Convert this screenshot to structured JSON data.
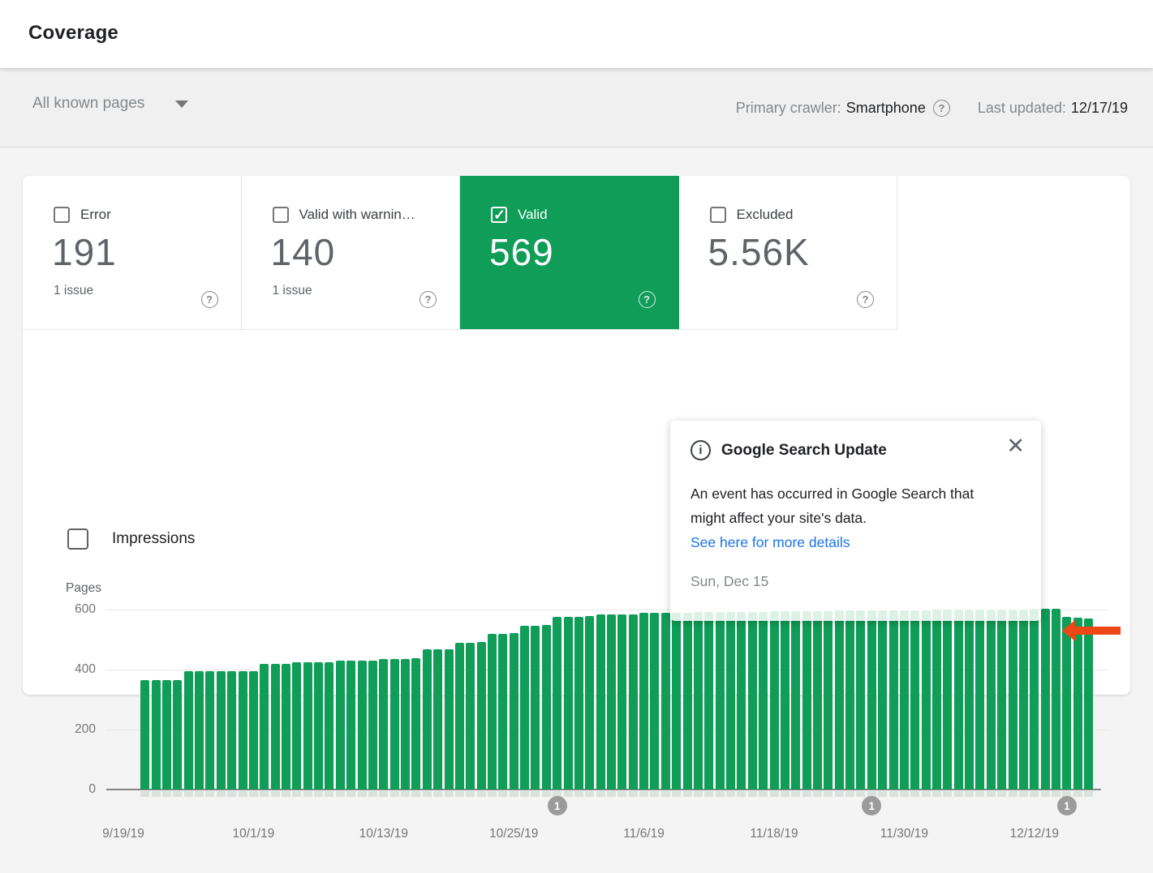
{
  "header": {
    "title": "Coverage"
  },
  "filter_bar": {
    "scope_label": "All known pages",
    "primary_crawler_label": "Primary crawler:",
    "primary_crawler_value": "Smartphone",
    "help_glyph": "?",
    "last_updated_label": "Last updated:",
    "last_updated_value": "12/17/19"
  },
  "status_cards": [
    {
      "label": "Error",
      "value": "191",
      "sub": "1 issue",
      "checked": false,
      "selected": false
    },
    {
      "label": "Valid with warnin…",
      "value": "140",
      "sub": "1 issue",
      "checked": false,
      "selected": false
    },
    {
      "label": "Valid",
      "value": "569",
      "sub": "",
      "checked": true,
      "selected": true
    },
    {
      "label": "Excluded",
      "value": "5.56K",
      "sub": "",
      "checked": false,
      "selected": false
    }
  ],
  "impressions_toggle": {
    "label": "Impressions",
    "checked": false
  },
  "chart_data": {
    "type": "bar",
    "title": "",
    "ylabel": "Pages",
    "ylim": [
      0,
      600
    ],
    "yticks": [
      0,
      200,
      400,
      600
    ],
    "grid": "horizontal",
    "bar_color": "#0f9d58",
    "xticks": [
      "9/19/19",
      "10/1/19",
      "10/13/19",
      "10/25/19",
      "11/6/19",
      "11/18/19",
      "11/30/19",
      "12/12/19"
    ],
    "x": [
      "9/21/19",
      "9/22/19",
      "9/23/19",
      "9/24/19",
      "9/25/19",
      "9/26/19",
      "9/27/19",
      "9/28/19",
      "9/29/19",
      "9/30/19",
      "10/1/19",
      "10/2/19",
      "10/3/19",
      "10/4/19",
      "10/5/19",
      "10/6/19",
      "10/7/19",
      "10/8/19",
      "10/9/19",
      "10/10/19",
      "10/11/19",
      "10/12/19",
      "10/13/19",
      "10/14/19",
      "10/15/19",
      "10/16/19",
      "10/17/19",
      "10/18/19",
      "10/19/19",
      "10/20/19",
      "10/21/19",
      "10/22/19",
      "10/23/19",
      "10/24/19",
      "10/25/19",
      "10/26/19",
      "10/27/19",
      "10/28/19",
      "10/29/19",
      "10/30/19",
      "10/31/19",
      "11/1/19",
      "11/2/19",
      "11/3/19",
      "11/4/19",
      "11/5/19",
      "11/6/19",
      "11/7/19",
      "11/8/19",
      "11/9/19",
      "11/10/19",
      "11/11/19",
      "11/12/19",
      "11/13/19",
      "11/14/19",
      "11/15/19",
      "11/16/19",
      "11/17/19",
      "11/18/19",
      "11/19/19",
      "11/20/19",
      "11/21/19",
      "11/22/19",
      "11/23/19",
      "11/24/19",
      "11/25/19",
      "11/26/19",
      "11/27/19",
      "11/28/19",
      "11/29/19",
      "11/30/19",
      "12/1/19",
      "12/2/19",
      "12/3/19",
      "12/4/19",
      "12/5/19",
      "12/6/19",
      "12/7/19",
      "12/8/19",
      "12/9/19",
      "12/10/19",
      "12/11/19",
      "12/12/19",
      "12/13/19",
      "12/14/19",
      "12/15/19",
      "12/16/19",
      "12/17/19"
    ],
    "values": [
      365,
      365,
      365,
      365,
      395,
      395,
      395,
      395,
      395,
      395,
      395,
      418,
      418,
      418,
      424,
      424,
      424,
      424,
      430,
      430,
      430,
      430,
      435,
      435,
      435,
      437,
      468,
      468,
      468,
      490,
      490,
      492,
      520,
      520,
      522,
      545,
      545,
      548,
      575,
      575,
      575,
      578,
      585,
      585,
      585,
      585,
      590,
      590,
      590,
      590,
      590,
      592,
      592,
      592,
      592,
      592,
      593,
      593,
      594,
      594,
      594,
      595,
      595,
      595,
      596,
      596,
      596,
      597,
      597,
      597,
      598,
      598,
      598,
      599,
      599,
      599,
      600,
      600,
      600,
      600,
      601,
      601,
      602,
      602,
      602,
      575,
      572,
      569
    ],
    "markers": [
      {
        "date": "10/29/19",
        "label": "1",
        "arrow": false
      },
      {
        "date": "11/27/19",
        "label": "1",
        "arrow": false
      },
      {
        "date": "12/15/19",
        "label": "1",
        "arrow": true
      }
    ]
  },
  "tooltip": {
    "title": "Google Search Update",
    "info_glyph": "i",
    "close_glyph": "✕",
    "body": "An event has occurred in Google Search that might affect your site's data.",
    "link": "See here for more details",
    "date": "Sun, Dec 15"
  },
  "colors": {
    "accent_green": "#0f9d58",
    "link_blue": "#1a73e8",
    "arrow_red": "#ee4716",
    "marker_gray": "#9b9b9b"
  }
}
